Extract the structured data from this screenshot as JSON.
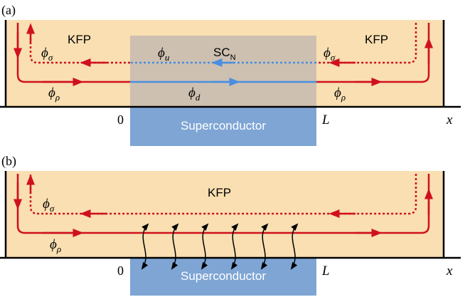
{
  "panel_a": {
    "label": "(a)",
    "kfp_left": "KFP",
    "kfp_right": "KFP",
    "scn": {
      "main": "SC",
      "sub": "N"
    },
    "phi_sigma_left": {
      "symbol": "ϕ",
      "sub": "σ"
    },
    "phi_u": {
      "symbol": "ϕ",
      "sub": "u"
    },
    "phi_sigma_right": {
      "symbol": "ϕ",
      "sub": "σ"
    },
    "phi_rho_left": {
      "symbol": "ϕ",
      "sub": "ρ"
    },
    "phi_d": {
      "symbol": "ϕ",
      "sub": "d"
    },
    "phi_rho_right": {
      "symbol": "ϕ",
      "sub": "ρ"
    },
    "origin": "0",
    "length": "L",
    "axis": "x",
    "superconductor": "Superconductor"
  },
  "panel_b": {
    "label": "(b)",
    "kfp": "KFP",
    "phi_sigma": {
      "symbol": "ϕ",
      "sub": "σ"
    },
    "phi_rho": {
      "symbol": "ϕ",
      "sub": "ρ"
    },
    "origin": "0",
    "length": "L",
    "axis": "x",
    "superconductor": "Superconductor"
  }
}
